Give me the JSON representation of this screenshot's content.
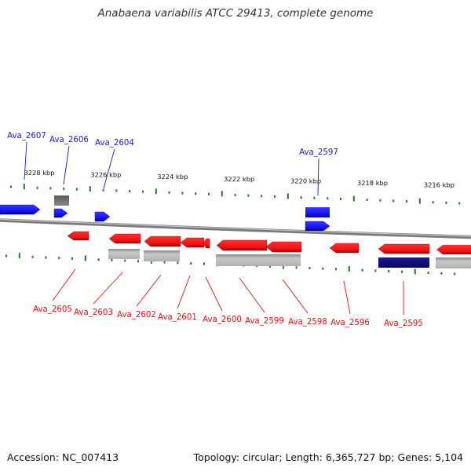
{
  "title": "Anabaena variabilis ATCC 29413, complete genome",
  "accession_text": "Accession: NC_007413",
  "summary_text": "Topology: circular; Length: 6,365,727 bp; Genes: 5,104",
  "colors": {
    "forward_gene": "#1a1aff",
    "reverse_gene": "#ff1a1a",
    "forward_label": "#1a1acc",
    "reverse_label": "#e01010",
    "selected_gene": "#0d0d80",
    "feature_gray": "#a8a8a8",
    "scale_tick": "#1f7a1f",
    "backbone": "#888888"
  },
  "scale_labels": [
    {
      "text": "3228 kbp",
      "kb": 3228
    },
    {
      "text": "3226 kbp",
      "kb": 3226
    },
    {
      "text": "3224 kbp",
      "kb": 3224
    },
    {
      "text": "3222 kbp",
      "kb": 3222
    },
    {
      "text": "3220 kbp",
      "kb": 3220
    },
    {
      "text": "3218 kbp",
      "kb": 3218
    },
    {
      "text": "3216 kbp",
      "kb": 3216
    }
  ],
  "genes": [
    {
      "id": "Ava_2607",
      "strand": "+"
    },
    {
      "id": "Ava_2606",
      "strand": "+"
    },
    {
      "id": "Ava_2604",
      "strand": "+"
    },
    {
      "id": "Ava_2597",
      "strand": "+"
    },
    {
      "id": "Ava_2605",
      "strand": "-"
    },
    {
      "id": "Ava_2603",
      "strand": "-"
    },
    {
      "id": "Ava_2602",
      "strand": "-"
    },
    {
      "id": "Ava_2601",
      "strand": "-"
    },
    {
      "id": "Ava_2600",
      "strand": "-"
    },
    {
      "id": "Ava_2599",
      "strand": "-"
    },
    {
      "id": "Ava_2598",
      "strand": "-"
    },
    {
      "id": "Ava_2596",
      "strand": "-"
    },
    {
      "id": "Ava_2595",
      "strand": "-",
      "selected": true
    }
  ]
}
